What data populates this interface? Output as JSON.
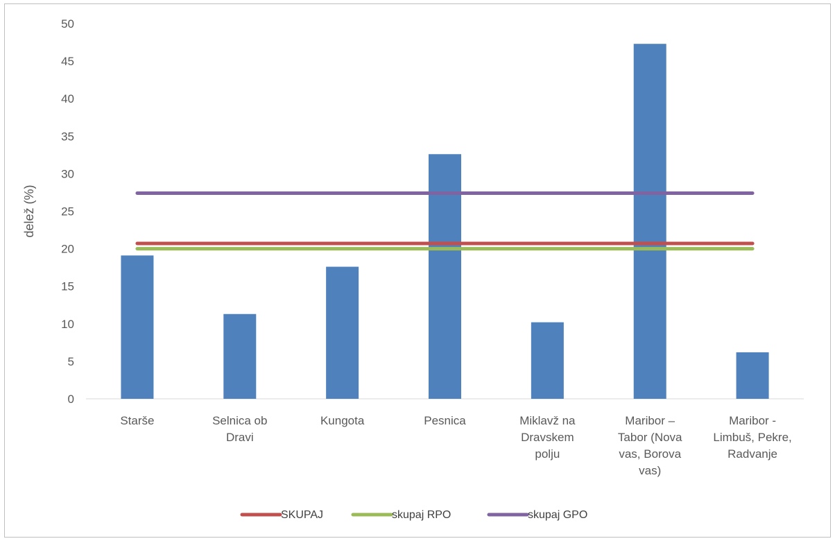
{
  "chart_data": {
    "type": "bar",
    "title": "",
    "xlabel": "",
    "ylabel": "delež (%)",
    "ylim": [
      0,
      50
    ],
    "yticks": [
      0,
      5,
      10,
      15,
      20,
      25,
      30,
      35,
      40,
      45,
      50
    ],
    "grid": false,
    "legend_position": "bottom",
    "categories": [
      [
        "Starše"
      ],
      [
        "Selnica ob",
        "Dravi"
      ],
      [
        "Kungota"
      ],
      [
        "Pesnica"
      ],
      [
        "Miklavž na",
        "Dravskem",
        "polju"
      ],
      [
        "Maribor –",
        "Tabor (Nova",
        "vas, Borova",
        "vas)"
      ],
      [
        "Maribor -",
        "Limbuš, Pekre,",
        "Radvanje"
      ]
    ],
    "bar_series": {
      "values": [
        19.1,
        11.3,
        17.6,
        32.6,
        10.2,
        47.3,
        6.2
      ],
      "color": "#4f81bd"
    },
    "series": [
      {
        "name": "SKUPAJ",
        "type": "line",
        "value": 20.7,
        "color": "#c0504d"
      },
      {
        "name": "skupaj RPO",
        "type": "line",
        "value": 20.0,
        "color": "#9bbb59"
      },
      {
        "name": "skupaj GPO",
        "type": "line",
        "value": 27.4,
        "color": "#8064a2"
      }
    ]
  }
}
